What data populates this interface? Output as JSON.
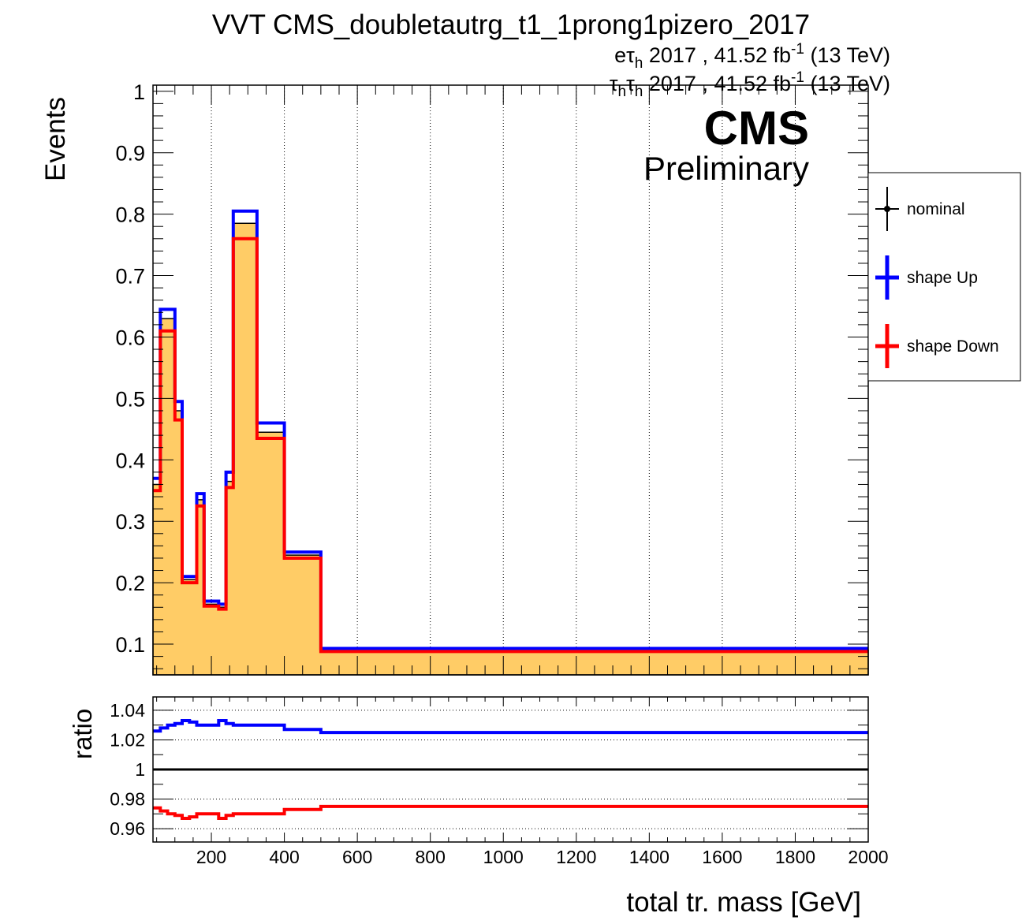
{
  "chart_data": [
    {
      "type": "step",
      "title": "VVT CMS_doubletautrg_t1_1prong1pizero_2017",
      "lumi_lines": [
        {
          "pre": "eτ",
          "sub": "h",
          "post": " 2017 , 41.52 fb",
          "sup": "-1",
          "end": " (13 TeV)"
        },
        {
          "pre": "τ",
          "sub": "h",
          "mid": "τ",
          "sub2": "h",
          "post": " 2017 , 41.52 fb",
          "sup": "-1",
          "end": " (13 TeV)"
        }
      ],
      "cms_label": "CMS",
      "cms_sublabel": "Preliminary",
      "xlabel": "total tr. mass [GeV]",
      "ylabel": "Events",
      "xlim": [
        40,
        2000
      ],
      "ylim": [
        0.05,
        1.01
      ],
      "yticks": [
        "0.1",
        "0.2",
        "0.3",
        "0.4",
        "0.5",
        "0.6",
        "0.7",
        "0.8",
        "0.9",
        "1"
      ],
      "xticks": [
        "200",
        "400",
        "600",
        "800",
        "1000",
        "1200",
        "1400",
        "1600",
        "1800",
        "2000"
      ],
      "grid": "x",
      "bin_edges": [
        40,
        60,
        80,
        100,
        120,
        140,
        160,
        180,
        200,
        220,
        240,
        260,
        280,
        300,
        325,
        350,
        400,
        450,
        500,
        2000
      ],
      "series": [
        {
          "name": "nominal",
          "color": "#ffcc66",
          "style": "filled",
          "values": [
            0.36,
            0.63,
            0.63,
            0.48,
            0.205,
            0.205,
            0.335,
            0.165,
            0.165,
            0.16,
            0.365,
            0.785,
            0.785,
            0.785,
            0.445,
            0.445,
            0.245,
            0.245,
            0.09
          ]
        },
        {
          "name": "shape Up",
          "color": "#0000ff",
          "style": "line",
          "values": [
            0.37,
            0.645,
            0.645,
            0.495,
            0.21,
            0.21,
            0.345,
            0.17,
            0.17,
            0.165,
            0.38,
            0.805,
            0.805,
            0.805,
            0.46,
            0.46,
            0.25,
            0.25,
            0.093
          ]
        },
        {
          "name": "shape Down",
          "color": "#ff0000",
          "style": "line",
          "values": [
            0.35,
            0.61,
            0.61,
            0.465,
            0.2,
            0.2,
            0.325,
            0.162,
            0.162,
            0.157,
            0.355,
            0.76,
            0.76,
            0.76,
            0.435,
            0.435,
            0.24,
            0.24,
            0.088
          ]
        }
      ],
      "legend": {
        "position": "right-outside",
        "entries": [
          {
            "label": "nominal",
            "color": "#000000"
          },
          {
            "label": "shape Up",
            "color": "#0000ff"
          },
          {
            "label": "shape Down",
            "color": "#ff0000"
          }
        ]
      }
    },
    {
      "type": "step",
      "ylabel": "ratio",
      "xlim": [
        40,
        2000
      ],
      "ylim": [
        0.951,
        1.049
      ],
      "yticks": [
        "0.96",
        "0.98",
        "1",
        "1.02",
        "1.04"
      ],
      "reference_line": 1,
      "grid": "y",
      "bin_edges": [
        40,
        60,
        80,
        100,
        120,
        140,
        160,
        180,
        200,
        220,
        240,
        260,
        280,
        300,
        325,
        350,
        400,
        450,
        500,
        2000
      ],
      "series": [
        {
          "name": "shape Up",
          "color": "#0000ff",
          "values": [
            1.026,
            1.028,
            1.03,
            1.031,
            1.033,
            1.032,
            1.03,
            1.03,
            1.03,
            1.033,
            1.031,
            1.03,
            1.03,
            1.03,
            1.03,
            1.03,
            1.027,
            1.027,
            1.025
          ]
        },
        {
          "name": "shape Down",
          "color": "#ff0000",
          "values": [
            0.974,
            0.972,
            0.97,
            0.969,
            0.967,
            0.968,
            0.97,
            0.97,
            0.97,
            0.967,
            0.969,
            0.97,
            0.97,
            0.97,
            0.97,
            0.97,
            0.973,
            0.973,
            0.975
          ]
        }
      ]
    }
  ]
}
